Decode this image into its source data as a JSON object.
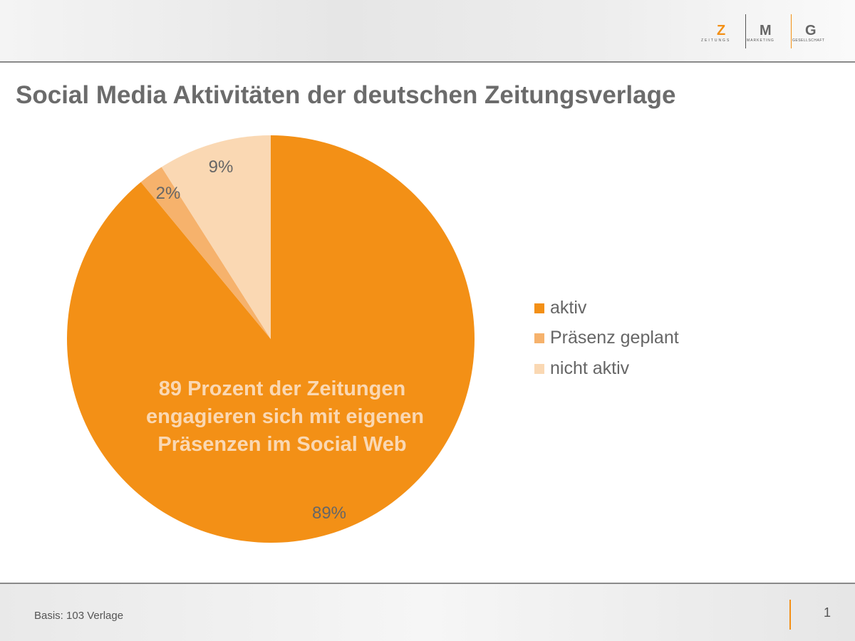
{
  "logo": {
    "letters": [
      "Z",
      "M",
      "G"
    ],
    "words": [
      "ZEITUNGS",
      "MARKETING",
      "GESELLSCHAFT"
    ]
  },
  "title": "Social Media Aktivitäten der deutschen Zeitungsverlage",
  "chart_data": {
    "type": "pie",
    "categories": [
      "aktiv",
      "Präsenz geplant",
      "nicht aktiv"
    ],
    "values": [
      89,
      2,
      9
    ],
    "labels": [
      "89%",
      "2%",
      "9%"
    ],
    "colors": [
      "#F39016",
      "#F6B26C",
      "#FAD8B3"
    ],
    "legend": "right",
    "annotation": [
      "89 Prozent der Zeitungen",
      "engagieren sich mit eigenen",
      "Präsenzen im Social Web"
    ]
  },
  "footer": {
    "basis": "Basis: 103 Verlage",
    "page": "1"
  }
}
